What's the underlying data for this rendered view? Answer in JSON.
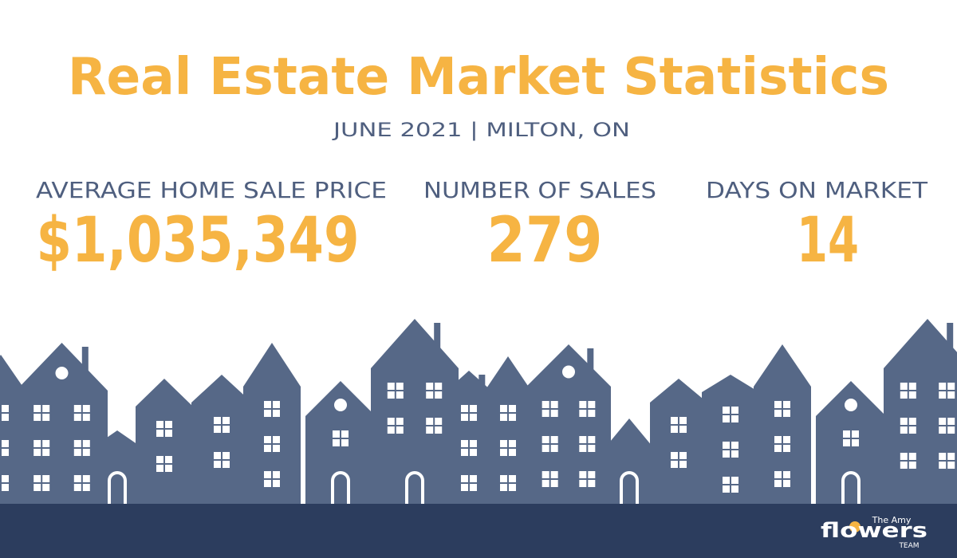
{
  "header": {
    "title": "Real Estate Market Statistics",
    "subtitle": "JUNE 2021  | MILTON, ON"
  },
  "stats": [
    {
      "label": "AVERAGE HOME SALE PRICE",
      "value": "$1,035,349"
    },
    {
      "label": "NUMBER OF SALES",
      "value": "279"
    },
    {
      "label": "DAYS ON MARKET",
      "value": "14"
    }
  ],
  "logo": {
    "top": "The Amy",
    "main": "flowers",
    "bottom": "TEAM"
  }
}
